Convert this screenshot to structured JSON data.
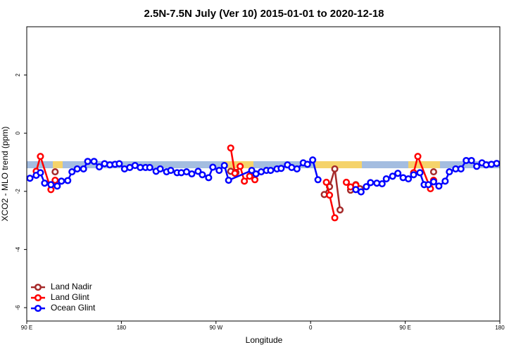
{
  "chart_data": {
    "type": "line",
    "title": "2.5N-7.5N July (Ver 10)   2015-01-01 to 2020-12-18",
    "xlabel": "Longitude",
    "ylabel": "XCO2 - MLO trend (ppm)",
    "xlim": [
      90,
      540
    ],
    "ylim": [
      -6.46,
      3.66
    ],
    "xticks": [
      {
        "value": 90,
        "label": "90 E"
      },
      {
        "value": 180,
        "label": "180"
      },
      {
        "value": 270,
        "label": "90 W"
      },
      {
        "value": 360,
        "label": "0"
      },
      {
        "value": 450,
        "label": "90 E"
      },
      {
        "value": 540,
        "label": "180"
      }
    ],
    "yticks": [
      -6,
      -4,
      -2,
      0,
      2
    ],
    "legend": "bottom-left",
    "series": [
      {
        "name": "Land Nadir",
        "color": "#a52a2a",
        "x": [
          117,
          200,
          284,
          289,
          330,
          373,
          378,
          383,
          388,
          393,
          398,
          403,
          407,
          440,
          477
        ],
        "values": [
          -1.33,
          null,
          -1.31,
          -1.35,
          null,
          -2.11,
          -1.84,
          -1.23,
          -2.64,
          null,
          -1.96,
          -1.77,
          -1.91,
          null,
          -1.33
        ]
      },
      {
        "name": "Land Glint",
        "color": "#ff0000",
        "x": [
          99,
          103,
          113,
          117,
          200,
          284,
          288,
          293,
          297,
          302,
          307,
          340,
          375,
          378,
          383,
          388,
          394,
          398,
          403,
          430,
          458,
          462,
          474,
          477
        ],
        "values": [
          -1.31,
          -0.8,
          -1.94,
          -1.62,
          null,
          -0.51,
          -1.38,
          -1.14,
          -1.65,
          -1.48,
          -1.6,
          null,
          -1.69,
          -2.13,
          -2.91,
          null,
          -1.69,
          -1.85,
          -1.79,
          null,
          -1.36,
          -0.8,
          -1.91,
          -1.62
        ]
      },
      {
        "name": "Ocean Glint",
        "color": "#0000ff",
        "x": [
          93,
          99,
          103,
          107,
          113,
          119,
          123,
          129,
          133,
          138,
          144,
          148,
          154,
          159,
          164,
          169,
          174,
          178,
          183,
          188,
          193,
          198,
          203,
          207,
          213,
          217,
          223,
          227,
          233,
          237,
          242,
          247,
          253,
          257,
          263,
          267,
          273,
          278,
          282,
          304,
          308,
          313,
          318,
          322,
          328,
          332,
          338,
          342,
          347,
          353,
          357,
          362,
          367,
          385,
          403,
          408,
          413,
          417,
          423,
          428,
          432,
          438,
          443,
          448,
          453,
          458,
          464,
          468,
          472,
          477,
          482,
          488,
          492,
          498,
          503,
          508,
          513,
          518,
          523,
          527,
          532,
          537
        ],
        "values": [
          -1.55,
          -1.45,
          -1.36,
          -1.72,
          -1.77,
          -1.82,
          -1.65,
          -1.63,
          -1.33,
          -1.23,
          -1.23,
          -0.97,
          -0.97,
          -1.16,
          -1.05,
          -1.09,
          -1.07,
          -1.05,
          -1.23,
          -1.18,
          -1.11,
          -1.18,
          -1.18,
          -1.18,
          -1.31,
          -1.23,
          -1.33,
          -1.28,
          -1.36,
          -1.36,
          -1.33,
          -1.4,
          -1.31,
          -1.43,
          -1.53,
          -1.17,
          -1.28,
          -1.11,
          -1.62,
          -1.28,
          -1.4,
          -1.33,
          -1.28,
          -1.28,
          -1.23,
          -1.21,
          -1.09,
          -1.18,
          -1.23,
          -1.02,
          -1.07,
          -0.92,
          -1.6,
          null,
          -1.94,
          -2.02,
          -1.84,
          -1.7,
          -1.72,
          -1.74,
          -1.57,
          -1.48,
          -1.38,
          -1.53,
          -1.57,
          -1.43,
          -1.36,
          -1.77,
          -1.77,
          -1.67,
          -1.82,
          -1.65,
          -1.33,
          -1.23,
          -1.23,
          -0.94,
          -0.94,
          -1.14,
          -1.02,
          -1.09,
          -1.07,
          -1.04
        ]
      }
    ]
  }
}
